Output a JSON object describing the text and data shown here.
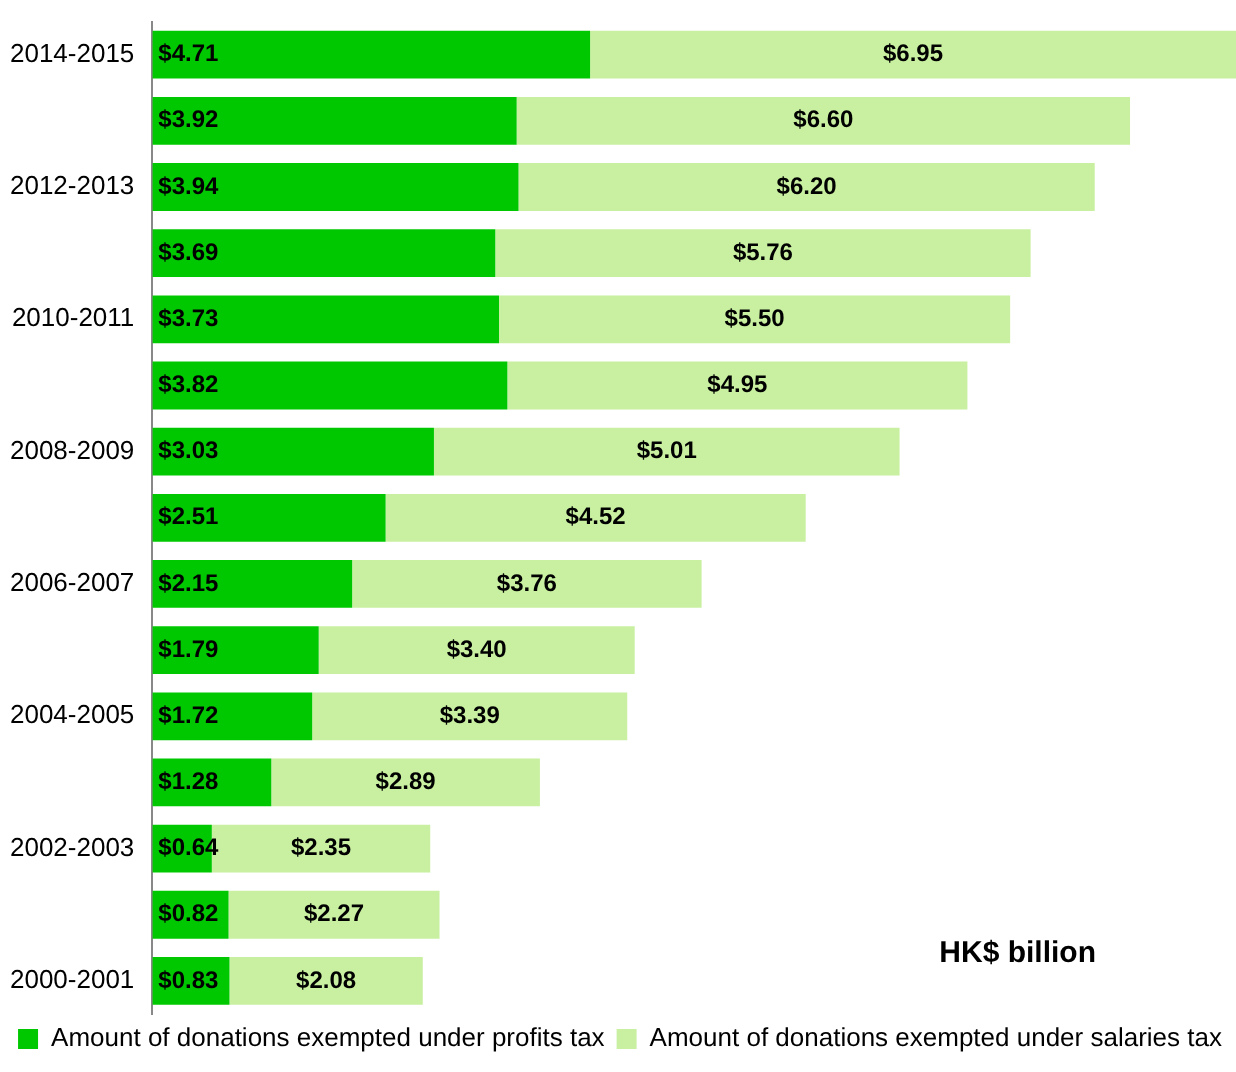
{
  "chart_data": {
    "type": "bar",
    "orientation": "horizontal",
    "stacked": true,
    "categories": [
      "2014-2015",
      null,
      "2012-2013",
      null,
      "2010-2011",
      null,
      "2008-2009",
      null,
      "2006-2007",
      null,
      "2004-2005",
      null,
      "2002-2003",
      null,
      "2000-2001"
    ],
    "series": [
      {
        "name": "Amount of donations exempted under profits tax",
        "color": "#00c800",
        "values": [
          4.71,
          3.92,
          3.94,
          3.69,
          3.73,
          3.82,
          3.03,
          2.51,
          2.15,
          1.79,
          1.72,
          1.28,
          0.64,
          0.82,
          0.83
        ],
        "value_labels": [
          "$4.71",
          "$3.92",
          "$3.94",
          "$3.69",
          "$3.73",
          "$3.82",
          "$3.03",
          "$2.51",
          "$2.15",
          "$1.79",
          "$1.72",
          "$1.28",
          "$0.64",
          "$0.82",
          "$0.83"
        ]
      },
      {
        "name": "Amount of donations exempted under salaries tax",
        "color": "#c8f0a0",
        "values": [
          6.95,
          6.6,
          6.2,
          5.76,
          5.5,
          4.95,
          5.01,
          4.52,
          3.76,
          3.4,
          3.39,
          2.89,
          2.35,
          2.27,
          2.08
        ],
        "value_labels": [
          "$6.95",
          "$6.60",
          "$6.20",
          "$5.76",
          "$5.50",
          "$4.95",
          "$5.01",
          "$4.52",
          "$3.76",
          "$3.40",
          "$3.39",
          "$2.89",
          "$2.35",
          "$2.27",
          "$2.08"
        ]
      }
    ],
    "annotations": [
      "HK$ billion"
    ],
    "legend": "bottom",
    "grid": false,
    "tick_labels": "y"
  }
}
